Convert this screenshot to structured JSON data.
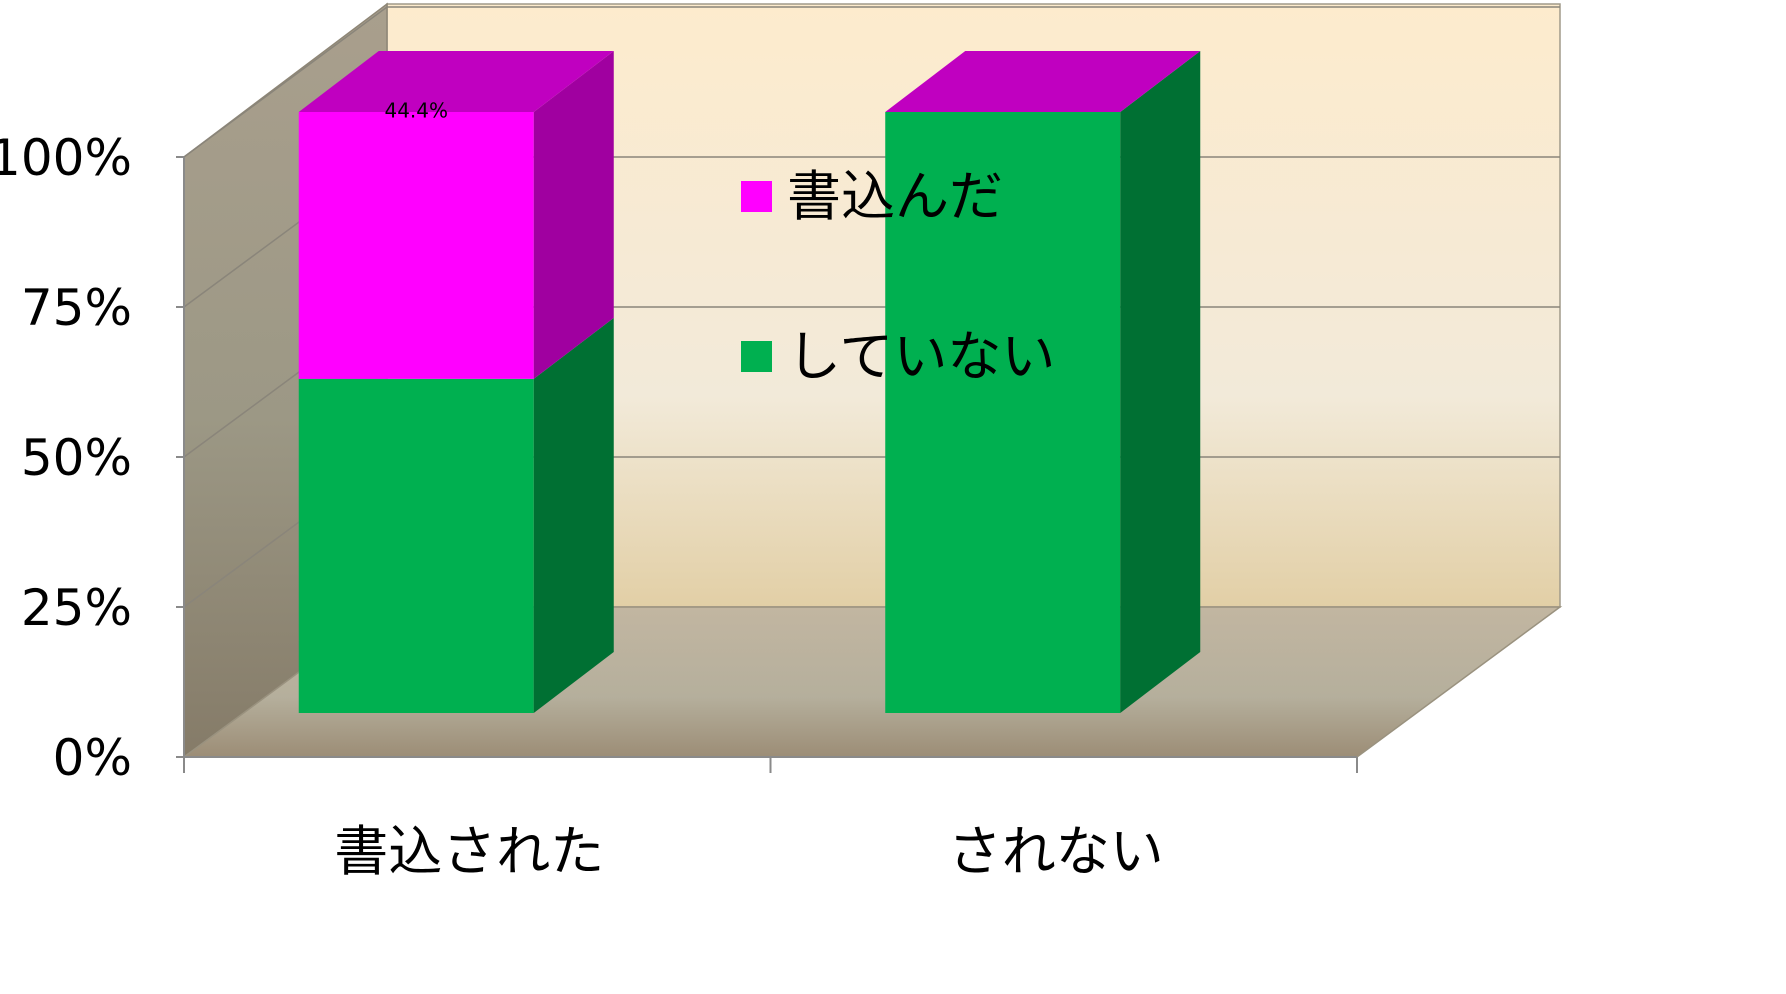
{
  "chart_data": {
    "type": "bar",
    "stacked": true,
    "percent_stacked": true,
    "three_d": true,
    "categories": [
      "書込された",
      "されない"
    ],
    "series": [
      {
        "name": "していない",
        "values": [
          55.6,
          100.0
        ],
        "color": "#00b050",
        "side_color": "#007033"
      },
      {
        "name": "書込んだ",
        "values": [
          44.4,
          0.0
        ],
        "color": "#ff00ff",
        "side_color": "#a000a0"
      }
    ],
    "data_labels": [
      {
        "series": "書込んだ",
        "category": "書込された",
        "text": "44.4%"
      }
    ],
    "y_ticks": [
      "0%",
      "25%",
      "50%",
      "75%",
      "100%"
    ],
    "ylim": [
      0,
      100
    ],
    "legend_position": "center",
    "grid": true
  }
}
